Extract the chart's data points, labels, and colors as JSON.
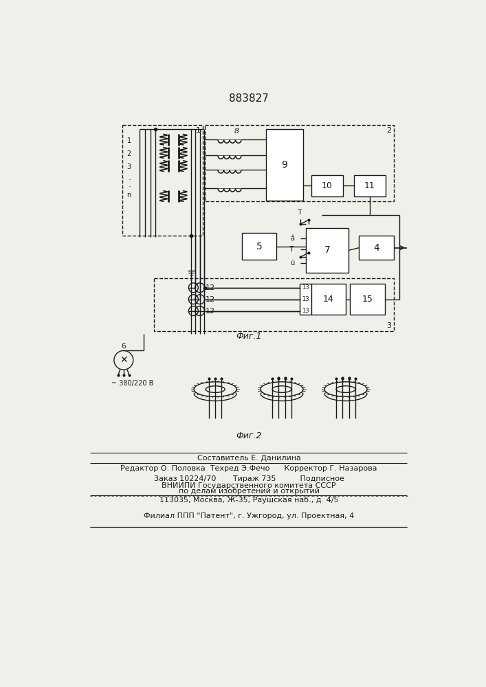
{
  "title": "883827",
  "fig1_caption": "Фиг.1",
  "fig2_caption": "Фиг.2",
  "text_sostavitel": "Составитель Е. Данилина",
  "text_redaktor": "Редактор О. Половка  Техред Э.Фечо      Корректор Г. Назарова",
  "text_zakaz": "Заказ 10224/70       Тираж 735          Подписное",
  "text_vniipи": "ВНИИПИ Государственного комитета СССР",
  "text_po_delam": "по делам изобретений и открытий",
  "text_address": "113035, Москва, Ж-35, Раушская наб., д. 4/5",
  "text_filial": "Филиал ППП \"Патент\", г. Ужгород, ул. Проектная, 4",
  "text_voltage": "~ 380/220 В",
  "bg_color": "#f0efea",
  "line_color": "#1a1a1a",
  "box_color": "#ffffff"
}
